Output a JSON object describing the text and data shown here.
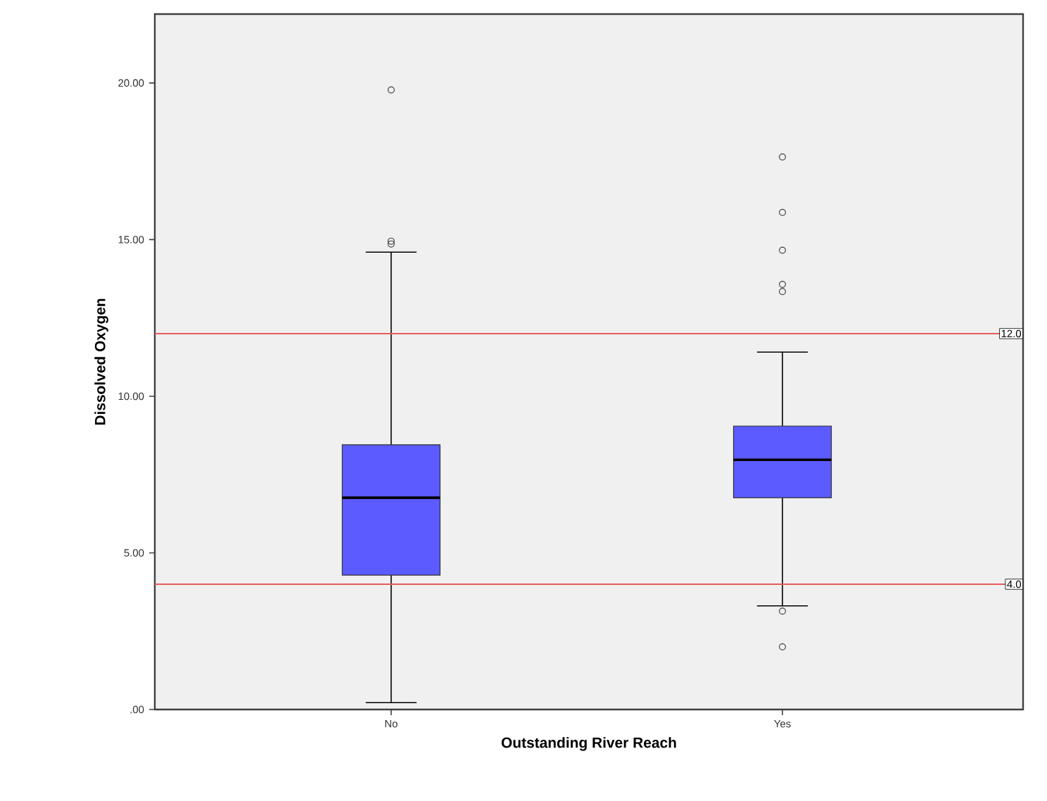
{
  "chart_data": {
    "type": "box",
    "xlabel": "Outstanding River Reach",
    "ylabel": "Dissolved Oxygen",
    "categories": [
      "No",
      "Yes"
    ],
    "series": [
      {
        "color": "#5b5bff",
        "boxes": [
          {
            "low": 0.22,
            "q1": 4.29,
            "median": 6.76,
            "q3": 8.45,
            "high": 14.6,
            "outliers": [
              19.78,
              14.95,
              14.86
            ]
          },
          {
            "low": 3.31,
            "q1": 6.76,
            "median": 7.97,
            "q3": 9.05,
            "high": 11.41,
            "outliers": [
              17.64,
              15.87,
              14.66,
              13.57,
              13.34,
              3.14,
              2.0
            ]
          }
        ]
      }
    ],
    "ylim": [
      0,
      22.2
    ],
    "yticks": [
      {
        "value": 0,
        "label": ".00"
      },
      {
        "value": 5,
        "label": "5.00"
      },
      {
        "value": 10,
        "label": "10.00"
      },
      {
        "value": 15,
        "label": "15.00"
      },
      {
        "value": 20,
        "label": "20.00"
      }
    ],
    "ref_lines": [
      {
        "axis": "y",
        "value": 12,
        "label": "12.0",
        "color": "#e85a5a"
      },
      {
        "axis": "y",
        "value": 4,
        "label": "4.0",
        "color": "#e85a5a"
      }
    ]
  }
}
